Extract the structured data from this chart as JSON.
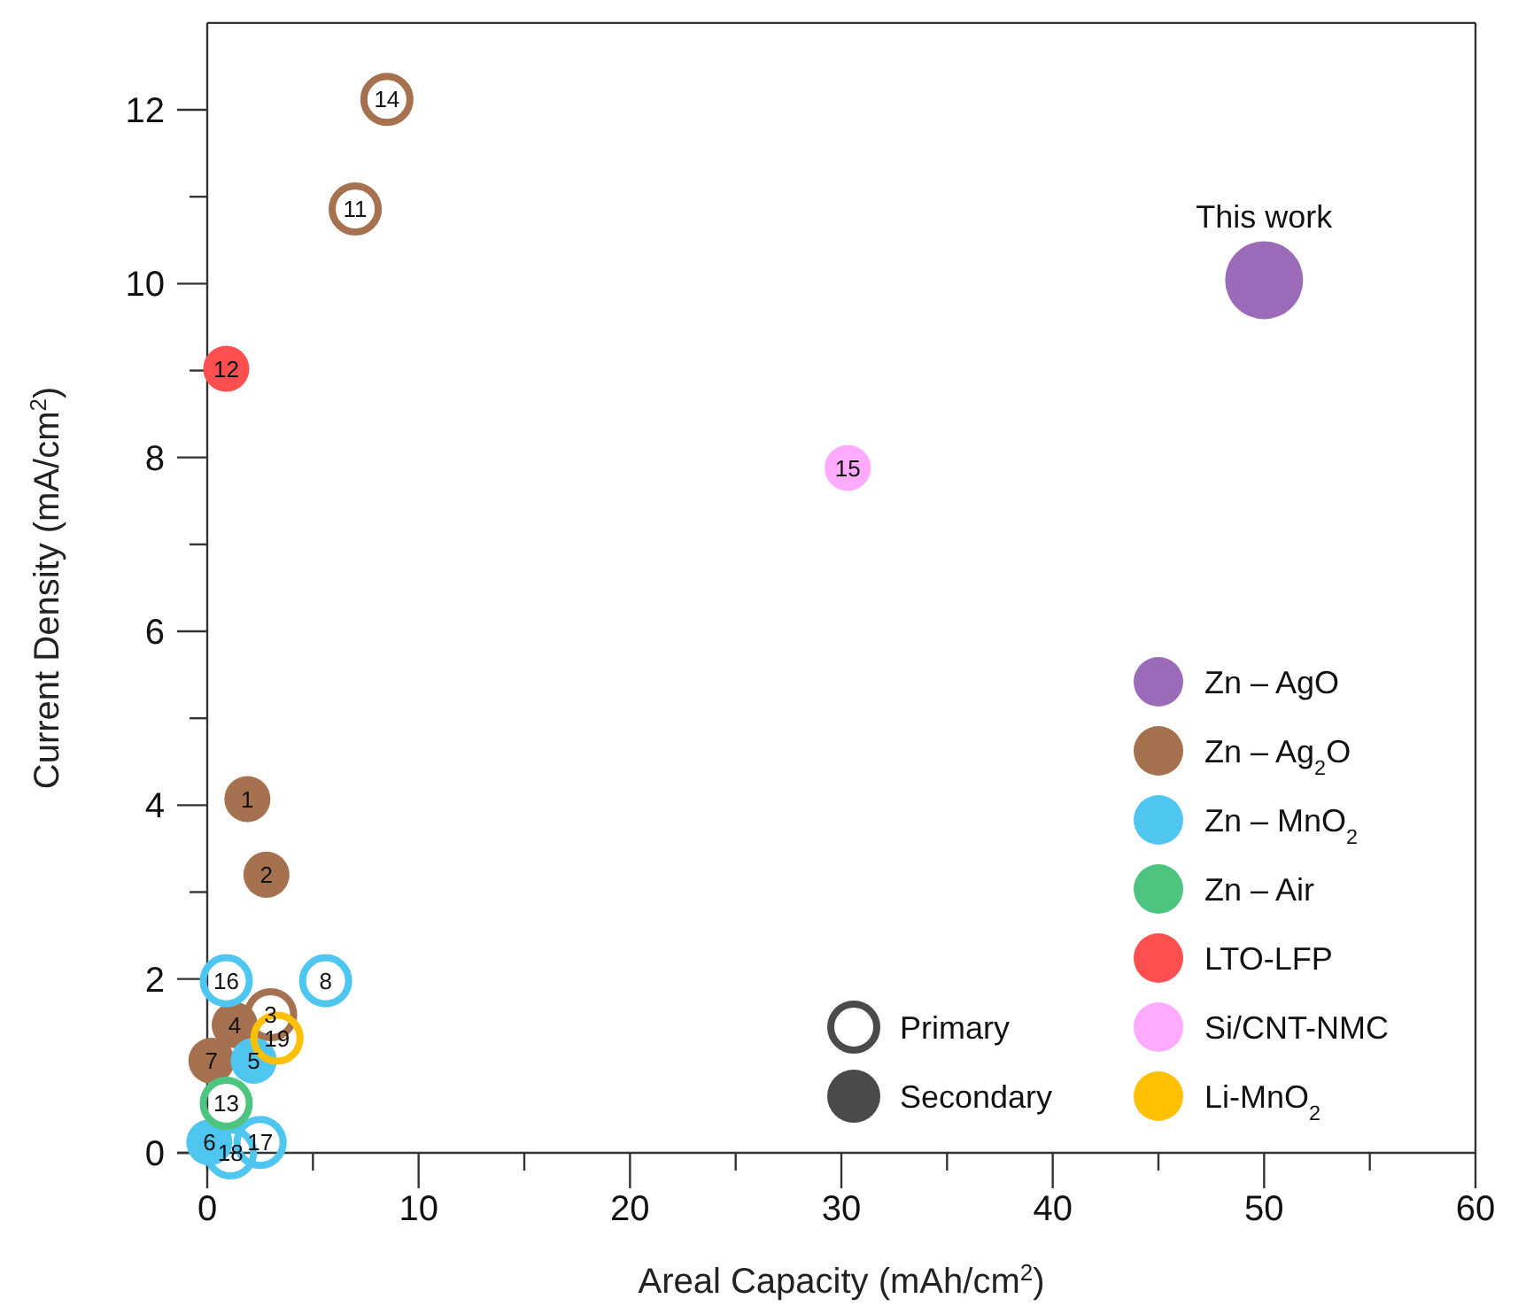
{
  "chart_data": {
    "type": "bubble",
    "xlabel": "Areal Capacity (mAh/cm$^{2}$)",
    "ylabel": "Current Density (mA/cm$^{2}$)",
    "xlim": [
      0,
      60
    ],
    "ylim": [
      0,
      13
    ],
    "xticks": [
      0,
      {
        "value": 5,
        "label": null
      },
      10,
      {
        "value": 15,
        "label": null
      },
      20,
      {
        "value": 25,
        "label": null
      },
      30,
      {
        "value": 35,
        "label": null
      },
      40,
      {
        "value": 45,
        "label": null
      },
      50,
      {
        "value": 55,
        "label": null
      },
      60
    ],
    "yticks": [
      0,
      {
        "value": 1,
        "label": null
      },
      2,
      {
        "value": 3,
        "label": null
      },
      4,
      {
        "value": 5,
        "label": null
      },
      6,
      {
        "value": 7,
        "label": null
      },
      8,
      {
        "value": 9,
        "label": null
      },
      10,
      {
        "value": 11,
        "label": null
      },
      12
    ],
    "grid": false,
    "legend": "bottom right",
    "annotations": [
      "Primary",
      "Secondary",
      {
        "text": "This work",
        "x": 50,
        "y": 10.04
      },
      {
        "text": "1",
        "x": 1.9,
        "y": 4.07
      },
      {
        "text": "2",
        "x": 2.8,
        "y": 3.2
      },
      {
        "text": "4",
        "x": 1.3,
        "y": 1.47
      },
      {
        "text": "7",
        "x": 0.2,
        "y": 1.06
      },
      {
        "text": "14",
        "x": 8.5,
        "y": 12.12
      },
      {
        "text": "11",
        "x": 7.0,
        "y": 10.86
      },
      {
        "text": "3",
        "x": 3.0,
        "y": 1.59
      },
      {
        "text": "5",
        "x": 2.2,
        "y": 1.06
      },
      {
        "text": "6",
        "x": 0.1,
        "y": 0.12
      },
      {
        "text": "16",
        "x": 0.9,
        "y": 1.98
      },
      {
        "text": "8",
        "x": 5.6,
        "y": 1.98
      },
      {
        "text": "17",
        "x": 2.5,
        "y": 0.12
      },
      {
        "text": "18",
        "x": 1.1,
        "y": 0
      },
      {
        "text": "13",
        "x": 0.9,
        "y": 0.57
      },
      {
        "text": "12",
        "x": 0.9,
        "y": 9.02
      },
      {
        "text": "15",
        "x": 30.3,
        "y": 7.88
      },
      {
        "text": "19",
        "x": 3.3,
        "y": 1.32
      }
    ],
    "series": [
      {
        "name": "Zn – AgO",
        "color": "#9b6bb9",
        "marker": "circle",
        "x": [
          50.0
        ],
        "values": [
          10.04
        ],
        "sizes": [
          1
        ]
      },
      {
        "name": "Zn – Ag$_{2}$O",
        "color": "#a5714e",
        "marker": "circle",
        "x": [
          1.9,
          2.8,
          1.3,
          0.2
        ],
        "values": [
          4.07,
          3.2,
          1.47,
          1.06
        ],
        "sizes": [
          0.35,
          0.35,
          0.35,
          0.35
        ]
      },
      {
        "color": "#a5714e",
        "marker": "circle-open",
        "x": [
          8.5,
          7.0,
          3.0
        ],
        "values": [
          12.12,
          10.86,
          1.59
        ],
        "sizes": [
          0.35,
          0.35,
          0.35
        ]
      },
      {
        "name": "Zn – MnO$_{2}$",
        "color": "#4fc6f0",
        "marker": "circle",
        "x": [
          2.2,
          0.1
        ],
        "values": [
          1.06,
          0.12
        ],
        "sizes": [
          0.35,
          0.35
        ]
      },
      {
        "color": "#4fc6f0",
        "marker": "circle-open",
        "x": [
          0.9,
          5.6,
          2.5,
          1.1
        ],
        "values": [
          1.98,
          1.98,
          0.12,
          0
        ],
        "sizes": [
          0.35,
          0.35,
          0.35,
          0.35
        ]
      },
      {
        "name": "Zn – Air",
        "color": "#4dc47f",
        "marker": "circle-open",
        "x": [
          0.9
        ],
        "values": [
          0.57
        ],
        "sizes": [
          0.35
        ]
      },
      {
        "name": "LTO-LFP",
        "color": "#fe4f50",
        "marker": "circle",
        "x": [
          0.9
        ],
        "values": [
          9.02
        ],
        "sizes": [
          0.35
        ]
      },
      {
        "name": "Si/CNT-NMC",
        "color": "#feaafe",
        "marker": "circle",
        "x": [
          30.3
        ],
        "values": [
          7.88
        ],
        "sizes": [
          0.35
        ]
      },
      {
        "name": "Li-MnO$_{2}$",
        "color": "#fec000",
        "marker": "circle-open",
        "x": [
          3.3
        ],
        "values": [
          1.32
        ],
        "sizes": [
          0.35
        ]
      }
    ]
  }
}
